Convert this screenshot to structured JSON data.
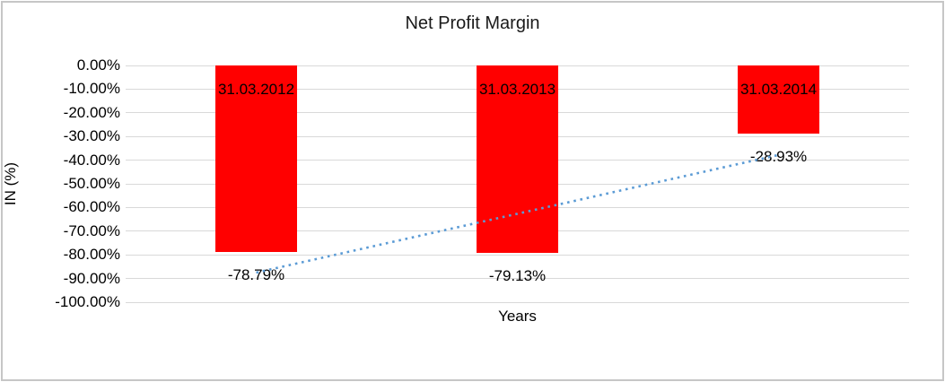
{
  "window": {
    "background": "#ffffff",
    "border_color": "#c6c6c6"
  },
  "chart_data": {
    "type": "bar",
    "title": "Net Profit Margin",
    "xlabel": "Years",
    "ylabel": "IN (%)",
    "categories": [
      "31.03.2012",
      "31.03.2013",
      "31.03.2014"
    ],
    "values": [
      -78.79,
      -79.13,
      -28.93
    ],
    "data_labels": [
      "-78.79%",
      "-79.13%",
      "-28.93%"
    ],
    "y_ticks": [
      "0.00%",
      "-10.00%",
      "-20.00%",
      "-30.00%",
      "-40.00%",
      "-50.00%",
      "-60.00%",
      "-70.00%",
      "-80.00%",
      "-90.00%",
      "-100.00%"
    ],
    "ylim": [
      -100,
      0
    ],
    "grid": true,
    "legend": "none",
    "bar_color": "#ff0000",
    "text_color": "#000000",
    "gridline_color": "#d9d9d9",
    "trendline": {
      "type": "linear",
      "style": "dotted",
      "color": "#5b9bd5",
      "start_pct": -87.5,
      "end_pct": -37.8
    }
  }
}
